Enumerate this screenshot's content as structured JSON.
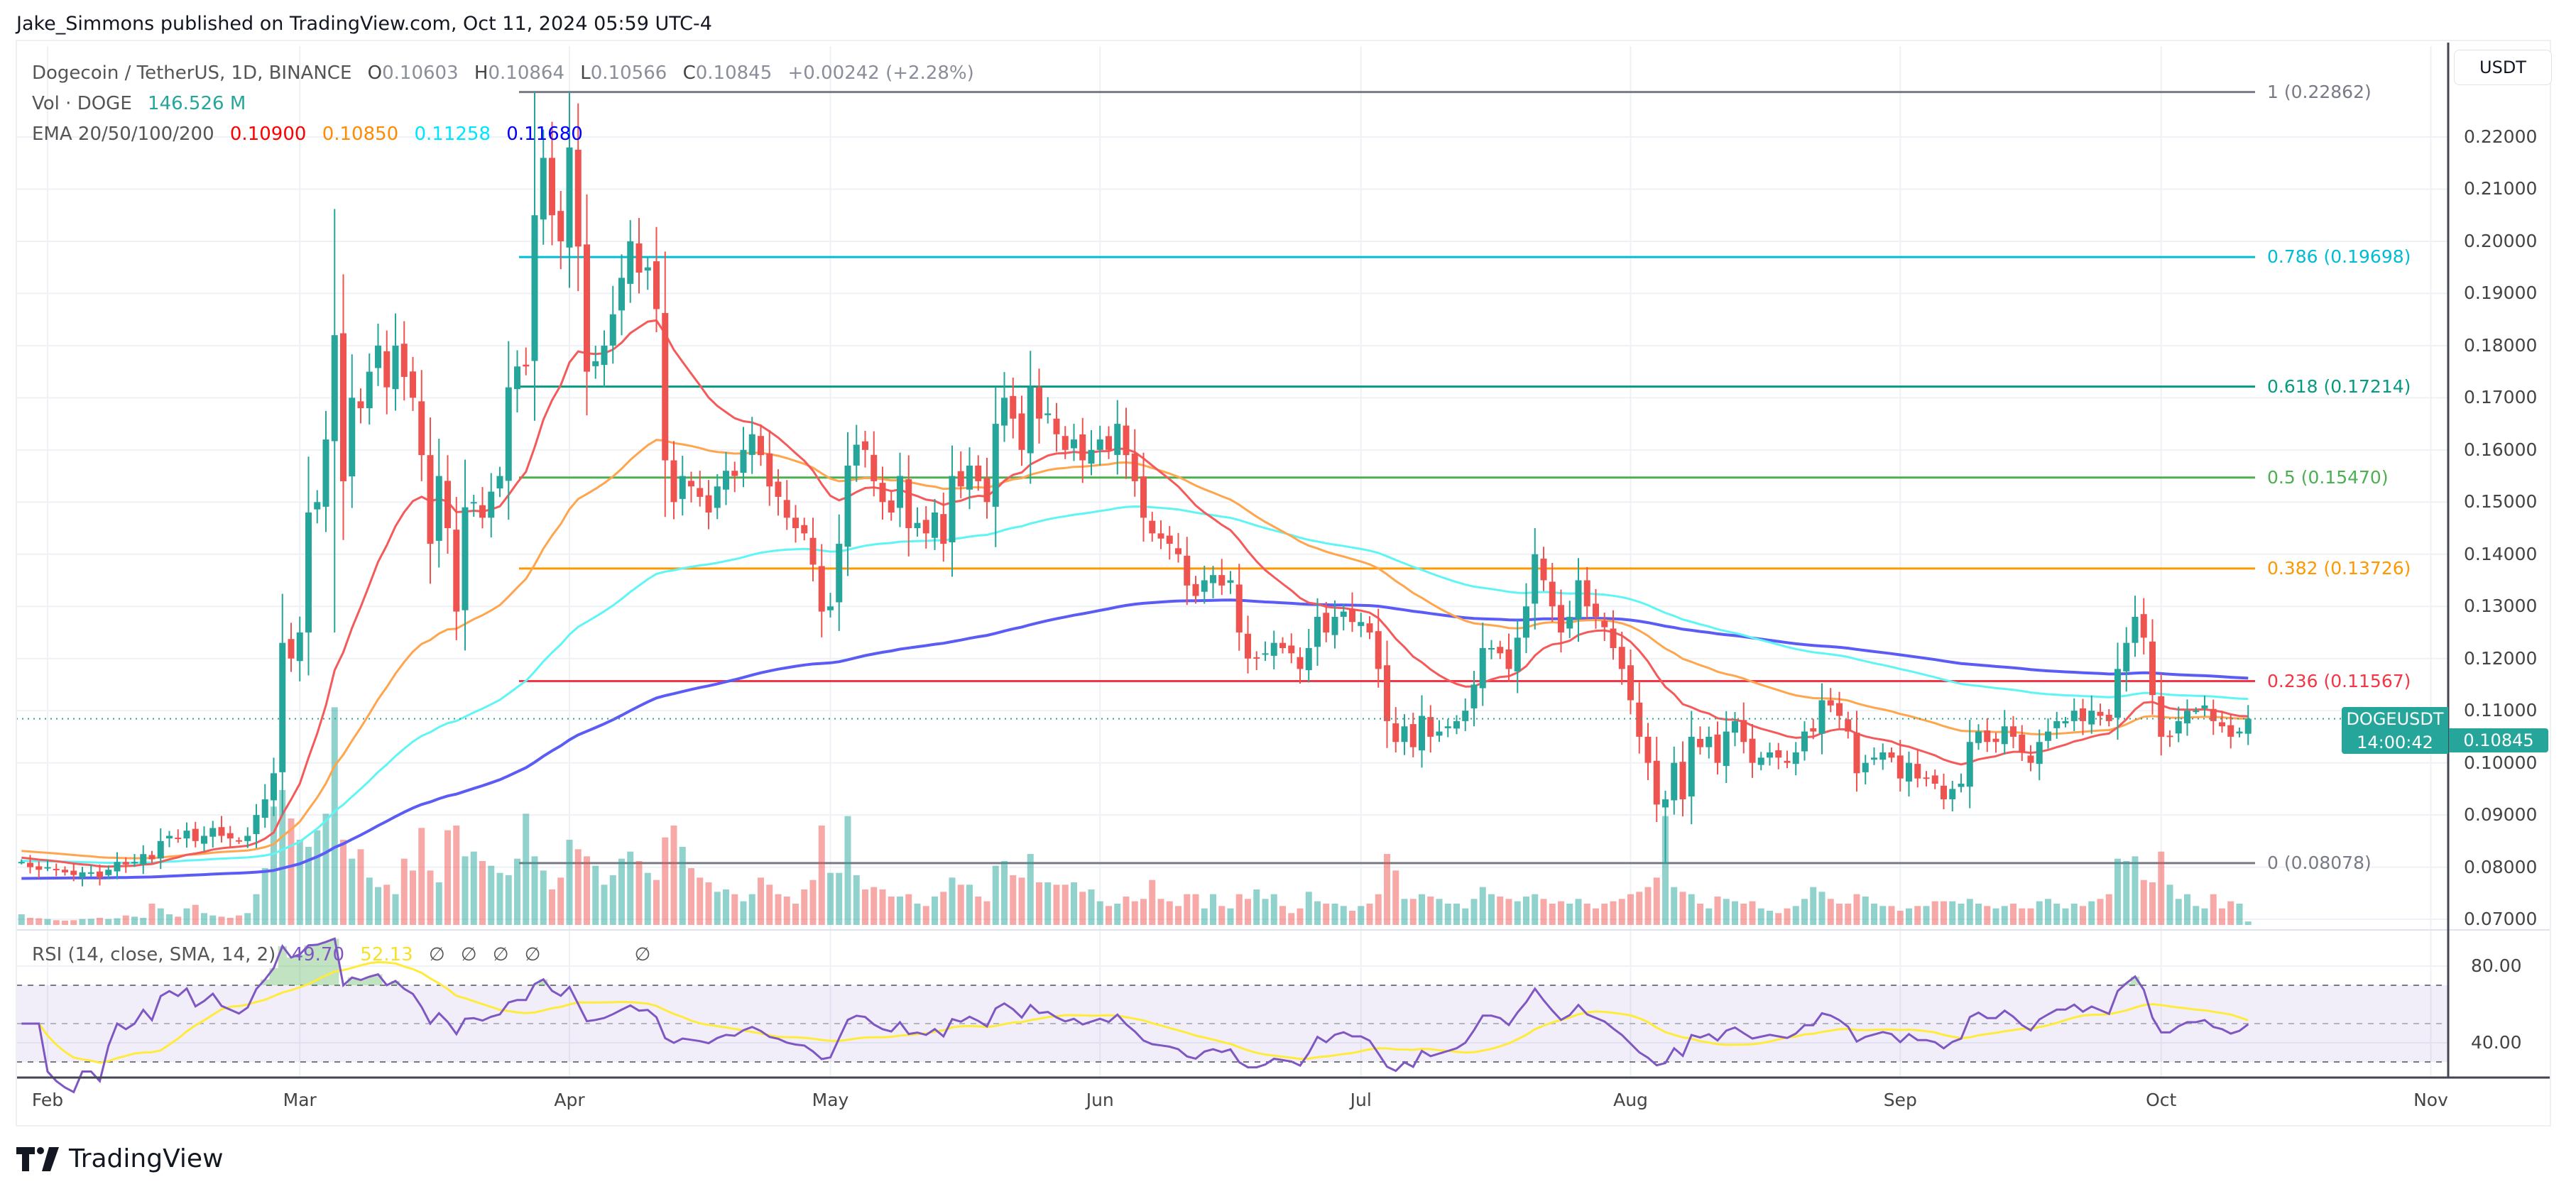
{
  "publisher_line": "Jake_Simmons published on TradingView.com, Oct 11, 2024 05:59 UTC-4",
  "legend": {
    "symbol": "Dogecoin / TetherUS, 1D, BINANCE",
    "open_key": "O",
    "open": "0.10603",
    "high_key": "H",
    "high": "0.10864",
    "low_key": "L",
    "low": "0.10566",
    "close_key": "C",
    "close": "0.10845",
    "change": "+0.00242 (+2.28%)",
    "volume_label": "Vol · DOGE",
    "volume_value": "146.526 M",
    "ema_label": "EMA 20/50/100/200",
    "ema_values": [
      "0.10900",
      "0.10850",
      "0.11258",
      "0.11680"
    ]
  },
  "rsi_legend": {
    "label": "RSI (14, close, SMA, 14, 2)",
    "rsi_value": "49.70",
    "sma_value": "52.13",
    "empty_marks": [
      "∅",
      "∅",
      "∅",
      "∅",
      "∅"
    ]
  },
  "price_axis": {
    "currency_button": "USDT",
    "ticks": [
      "0.22000",
      "0.21000",
      "0.20000",
      "0.19000",
      "0.18000",
      "0.17000",
      "0.16000",
      "0.15000",
      "0.14000",
      "0.13000",
      "0.12000",
      "0.11000",
      "0.10000",
      "0.09000",
      "0.08000",
      "0.07000"
    ],
    "current_symbol": "DOGEUSDT",
    "current_price": "0.10845",
    "countdown": "14:00:42"
  },
  "rsi_axis": {
    "ticks": [
      "80.00",
      "40.00"
    ]
  },
  "time_axis": {
    "months": [
      "Feb",
      "Mar",
      "Apr",
      "May",
      "Jun",
      "Jul",
      "Aug",
      "Sep",
      "Oct",
      "Nov"
    ]
  },
  "branding": {
    "logo_text": "TradingView"
  },
  "colors": {
    "up": "#26a69a",
    "down": "#ef5350",
    "ema20": "#ff0000",
    "ema50": "#ff8c00",
    "ema100": "#00ffff",
    "ema200": "#0000ff",
    "rsi": "#7e57c2",
    "rsi_sma": "#ffeb3b"
  },
  "chart_data": [
    {
      "type": "candlestick",
      "title": "Dogecoin / TetherUS, 1D, BINANCE",
      "x_range": [
        "2024-01-29",
        "2024-10-11"
      ],
      "ylim": [
        0.07,
        0.22
      ],
      "grid": true,
      "closes_by_month": {
        "Jan": [
          0.081,
          0.08,
          0.0795
        ],
        "Feb": [
          0.08,
          0.0795,
          0.079,
          0.0785,
          0.079,
          0.079,
          0.078,
          0.0795,
          0.081,
          0.0805,
          0.081,
          0.0825,
          0.0815,
          0.085,
          0.086,
          0.0855,
          0.087,
          0.085,
          0.086,
          0.0875,
          0.086,
          0.0855,
          0.085,
          0.086,
          0.09,
          0.093,
          0.098,
          0.123,
          0.12
        ],
        "Mar": [
          0.125,
          0.148,
          0.15,
          0.162,
          0.182,
          0.154,
          0.17,
          0.168,
          0.175,
          0.18,
          0.172,
          0.18,
          0.174,
          0.17,
          0.159,
          0.142,
          0.155,
          0.145,
          0.129,
          0.149,
          0.15,
          0.147,
          0.152,
          0.155,
          0.172,
          0.176,
          0.176,
          0.205,
          0.216,
          0.205,
          0.2
        ],
        "Apr": [
          0.218,
          0.199,
          0.175,
          0.177,
          0.18,
          0.186,
          0.193,
          0.2,
          0.194,
          0.195,
          0.187,
          0.158,
          0.15,
          0.155,
          0.153,
          0.151,
          0.148,
          0.153,
          0.156,
          0.155,
          0.16,
          0.163,
          0.159,
          0.153,
          0.151,
          0.147,
          0.145,
          0.144,
          0.138,
          0.129
        ],
        "May": [
          0.13,
          0.142,
          0.157,
          0.161,
          0.16,
          0.154,
          0.15,
          0.148,
          0.155,
          0.145,
          0.146,
          0.144,
          0.148,
          0.142,
          0.155,
          0.153,
          0.157,
          0.154,
          0.15,
          0.165,
          0.17,
          0.166,
          0.16,
          0.172,
          0.166,
          0.167,
          0.163,
          0.16,
          0.162,
          0.158,
          0.16
        ],
        "Jun": [
          0.162,
          0.16,
          0.165,
          0.159,
          0.154,
          0.147,
          0.144,
          0.143,
          0.142,
          0.14,
          0.134,
          0.132,
          0.135,
          0.136,
          0.134,
          0.135,
          0.125,
          0.12,
          0.12,
          0.121,
          0.123,
          0.122,
          0.121,
          0.118,
          0.122,
          0.128,
          0.125,
          0.128,
          0.129,
          0.127
        ],
        "Jul": [
          0.127,
          0.125,
          0.118,
          0.108,
          0.104,
          0.107,
          0.103,
          0.109,
          0.105,
          0.106,
          0.107,
          0.108,
          0.11,
          0.115,
          0.122,
          0.122,
          0.121,
          0.118,
          0.124,
          0.13,
          0.14,
          0.135,
          0.13,
          0.125,
          0.128,
          0.135,
          0.13,
          0.128,
          0.126,
          0.122,
          0.118
        ],
        "Aug": [
          0.112,
          0.105,
          0.1,
          0.092,
          0.093,
          0.1,
          0.093,
          0.105,
          0.103,
          0.105,
          0.1,
          0.106,
          0.108,
          0.104,
          0.1,
          0.101,
          0.102,
          0.101,
          0.1,
          0.102,
          0.106,
          0.106,
          0.112,
          0.111,
          0.109,
          0.106,
          0.098,
          0.1,
          0.101,
          0.102,
          0.101
        ],
        "Sep": [
          0.097,
          0.1,
          0.097,
          0.097,
          0.096,
          0.093,
          0.095,
          0.096,
          0.104,
          0.106,
          0.104,
          0.104,
          0.107,
          0.105,
          0.102,
          0.1,
          0.104,
          0.106,
          0.108,
          0.108,
          0.11,
          0.108,
          0.11,
          0.109,
          0.108,
          0.118,
          0.123,
          0.128,
          0.124,
          0.113
        ],
        "Oct": [
          0.105,
          0.105,
          0.108,
          0.11,
          0.11,
          0.111,
          0.108,
          0.107,
          0.105,
          0.106,
          0.10845
        ]
      },
      "notable_extremes": [
        {
          "date": "2024-03-05",
          "high": 0.2062,
          "low": 0.125
        },
        {
          "date": "2024-03-28",
          "high": 0.22862
        },
        {
          "date": "2024-08-05",
          "low": 0.08078
        }
      ]
    },
    {
      "type": "bar",
      "title": "Vol · DOGE",
      "unit": "M",
      "volumes_by_month": {
        "Jan": [
          450,
          300,
          280
        ],
        "Feb": [
          250,
          200,
          180,
          200,
          250,
          260,
          300,
          250,
          280,
          400,
          350,
          300,
          900,
          700,
          450,
          350,
          700,
          850,
          500,
          400,
          350,
          300,
          400,
          500,
          1300,
          2400,
          5000,
          5700,
          4500
        ],
        "Mar": [
          3600,
          3300,
          4000,
          4700,
          9200,
          3600,
          2800,
          3200,
          2000,
          1600,
          1700,
          1300,
          2800,
          2300,
          4100,
          2300,
          1800,
          4000,
          4200,
          2900,
          3100,
          2700,
          2500,
          2200,
          2100,
          2800,
          4700,
          2900,
          2300,
          1500,
          2000
        ],
        "Apr": [
          3600,
          3200,
          2900,
          2500,
          1700,
          2100,
          2800,
          3100,
          2700,
          2200,
          1900,
          3700,
          4200,
          3300,
          2400,
          2000,
          1800,
          1400,
          1500,
          1300,
          1000,
          1300,
          2000,
          1700,
          1300,
          1200,
          900,
          1500,
          1900,
          4200
        ],
        "May": [
          2200,
          2200,
          4600,
          2100,
          1500,
          1600,
          1500,
          1200,
          1200,
          1300,
          900,
          800,
          1200,
          1400,
          2000,
          1700,
          1700,
          1200,
          1000,
          2500,
          2700,
          2100,
          2000,
          3000,
          1800,
          1800,
          1700,
          1700,
          1800,
          1400,
          1500
        ],
        "Jun": [
          1000,
          800,
          900,
          1200,
          1000,
          1100,
          1900,
          1100,
          1000,
          800,
          1300,
          1300,
          700,
          1300,
          800,
          700,
          1300,
          1100,
          1500,
          1100,
          1300,
          800,
          500,
          700,
          1400,
          1000,
          900,
          900,
          800,
          600
        ],
        "Jul": [
          800,
          900,
          1300,
          3000,
          2300,
          1100,
          1100,
          1300,
          1200,
          1100,
          900,
          900,
          700,
          1100,
          1600,
          1300,
          1200,
          1100,
          1000,
          1200,
          1300,
          1100,
          900,
          1000,
          900,
          1100,
          900,
          700,
          900,
          1000,
          1100
        ],
        "Aug": [
          1300,
          1400,
          1600,
          2000,
          4600,
          1600,
          1400,
          1300,
          900,
          700,
          1200,
          1100,
          1000,
          900,
          1000,
          700,
          600,
          500,
          700,
          800,
          1100,
          1600,
          1400,
          1100,
          900,
          900,
          1300,
          1200,
          900,
          800,
          800
        ],
        "Sep": [
          600,
          700,
          800,
          800,
          1000,
          1000,
          1000,
          900,
          1100,
          900,
          800,
          700,
          800,
          900,
          700,
          700,
          1000,
          1100,
          900,
          700,
          900,
          800,
          1000,
          1100,
          1300,
          2800,
          2700,
          2900,
          1900,
          1800
        ],
        "Oct": [
          3100,
          1700,
          1100,
          1300,
          800,
          700,
          1300,
          700,
          1000,
          900,
          146.526
        ]
      }
    },
    {
      "type": "line",
      "title": "EMA 20/50/100/200",
      "series": [
        {
          "name": "20",
          "last": 0.109
        },
        {
          "name": "50",
          "last": 0.1085
        },
        {
          "name": "100",
          "last": 0.11258
        },
        {
          "name": "200",
          "last": 0.1168
        }
      ]
    },
    {
      "type": "line",
      "title": "RSI (14, close, SMA, 14, 2)",
      "ylim": [
        20,
        90
      ],
      "bands": [
        70,
        50,
        30
      ],
      "last_rsi": 49.7,
      "last_sma": 52.13
    },
    {
      "type": "fibonacci_retracement",
      "levels": [
        {
          "ratio": "1",
          "price": "0.22862",
          "label": "1 (0.22862)",
          "color": "#787b86"
        },
        {
          "ratio": "0.786",
          "price": "0.19698",
          "label": "0.786 (0.19698)",
          "color": "#00bcd4"
        },
        {
          "ratio": "0.618",
          "price": "0.17214",
          "label": "0.618 (0.17214)",
          "color": "#089981"
        },
        {
          "ratio": "0.5",
          "price": "0.15470",
          "label": "0.5 (0.15470)",
          "color": "#4caf50"
        },
        {
          "ratio": "0.382",
          "price": "0.13726",
          "label": "0.382 (0.13726)",
          "color": "#ff9800"
        },
        {
          "ratio": "0.236",
          "price": "0.11567",
          "label": "0.236 (0.11567)",
          "color": "#f23645"
        },
        {
          "ratio": "0",
          "price": "0.08078",
          "label": "0 (0.08078)",
          "color": "#787b86"
        }
      ],
      "start_date": "2024-03-28"
    }
  ]
}
